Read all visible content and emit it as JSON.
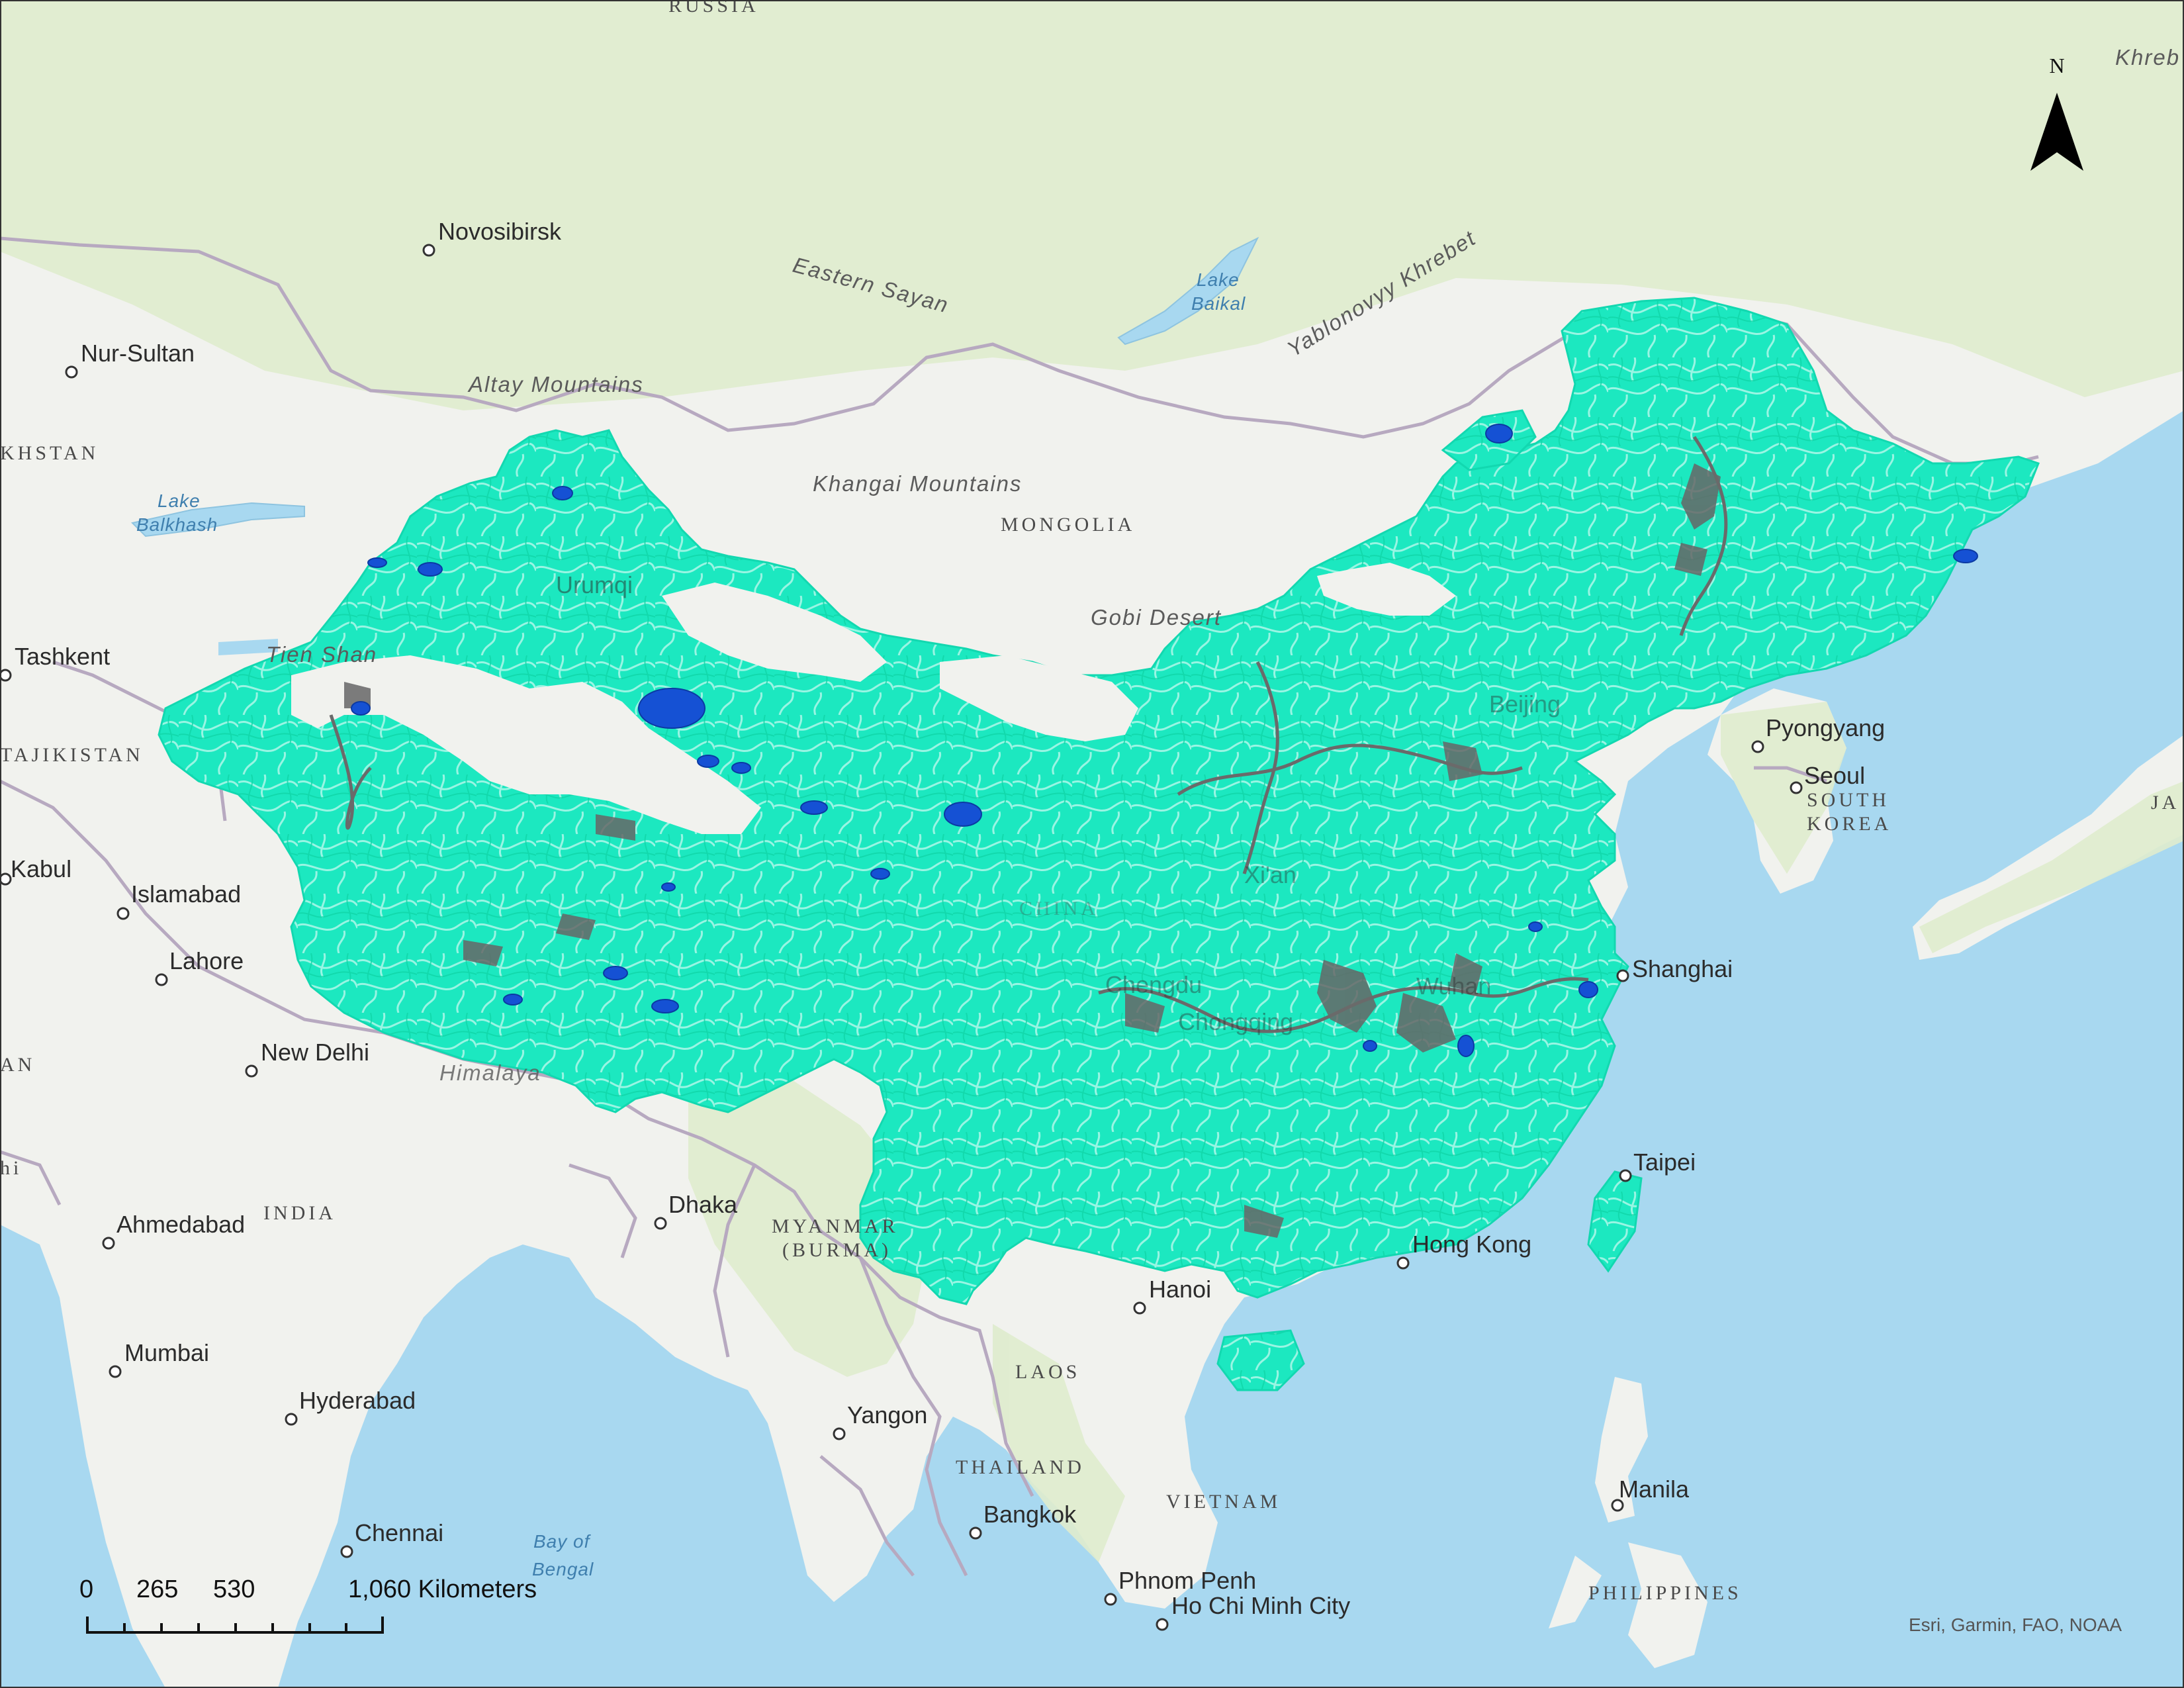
{
  "map": {
    "north_label": "N",
    "attribution": "Esri, Garmin, FAO, NOAA",
    "scale": {
      "ticks": [
        "0",
        "265",
        "530",
        "1,060 Kilometers"
      ]
    },
    "colors": {
      "ocean": "#a8d8f0",
      "land": "#f1f2ee",
      "land_green": "#dfeccd",
      "rivers": "#19f0c6",
      "lakes": "#1551d4",
      "wetland": "#666666",
      "border": "#b7a9c0"
    },
    "cities": [
      {
        "name": "Novosibirsk"
      },
      {
        "name": "Nur-Sultan"
      },
      {
        "name": "Tashkent"
      },
      {
        "name": "Kabul"
      },
      {
        "name": "Islamabad"
      },
      {
        "name": "Lahore"
      },
      {
        "name": "New Delhi"
      },
      {
        "name": "Ahmedabad"
      },
      {
        "name": "Mumbai"
      },
      {
        "name": "Hyderabad"
      },
      {
        "name": "Chennai"
      },
      {
        "name": "Dhaka"
      },
      {
        "name": "Yangon"
      },
      {
        "name": "Bangkok"
      },
      {
        "name": "Phnom Penh"
      },
      {
        "name": "Ho Chi Minh City"
      },
      {
        "name": "Hanoi"
      },
      {
        "name": "Hong Kong"
      },
      {
        "name": "Taipei"
      },
      {
        "name": "Shanghai"
      },
      {
        "name": "Seoul"
      },
      {
        "name": "Pyongyang"
      },
      {
        "name": "Manila"
      },
      {
        "name": "Urumqi"
      },
      {
        "name": "Beijing"
      },
      {
        "name": "Xi'an"
      },
      {
        "name": "Chengdu"
      },
      {
        "name": "Chongqing"
      },
      {
        "name": "Wuhan"
      }
    ],
    "countries": [
      "RUSSIA",
      "MONGOLIA",
      "KHSTAN",
      "TAJIKISTAN",
      "INDIA",
      "MYANMAR",
      "(BURMA)",
      "LAOS",
      "THAILAND",
      "VIETNAM",
      "PHILIPPINES",
      "SOUTH",
      "KOREA",
      "JA",
      "AN",
      "hi",
      "CHINA"
    ],
    "features": [
      "Eastern Sayan",
      "Altay Mountains",
      "Khangai Mountains",
      "Gobi Desert",
      "Yablonovyy Khrebet",
      "Tien Shan",
      "Himalaya",
      "Khreb"
    ],
    "waters": [
      "Lake",
      "Baikal",
      "Lake",
      "Balkhash",
      "Bay of",
      "Bengal"
    ]
  }
}
